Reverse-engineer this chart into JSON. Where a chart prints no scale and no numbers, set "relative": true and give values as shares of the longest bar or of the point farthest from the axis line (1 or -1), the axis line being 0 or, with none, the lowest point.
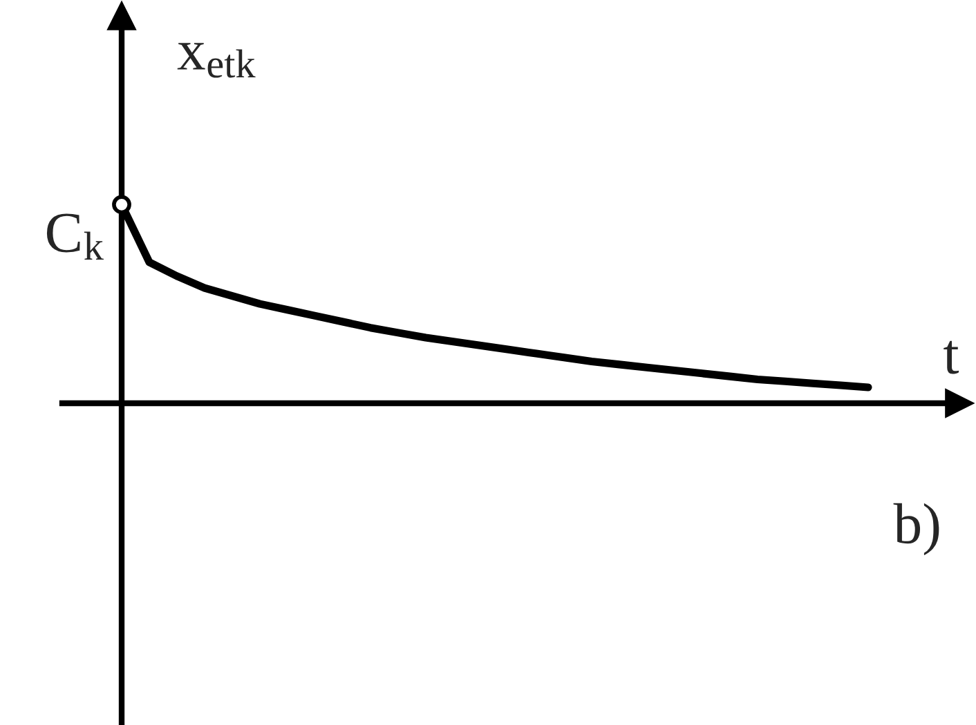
{
  "chart_data": {
    "type": "line",
    "relative": true,
    "xlabel": "t",
    "ylabel": "x$_{etk}$",
    "color": "#000000",
    "marker": "none",
    "line_style": "solid",
    "legend": false,
    "categories": [
      null,
      null,
      null,
      null,
      null,
      null,
      null,
      null,
      null,
      null,
      null,
      null,
      null,
      null,
      null,
      null,
      null,
      null,
      null,
      null,
      null,
      null,
      null,
      null,
      null,
      null,
      null,
      null
    ],
    "values": [
      1.0,
      0.71,
      0.64,
      0.58,
      0.54,
      0.5,
      0.47,
      0.44,
      0.41,
      0.38,
      0.355,
      0.33,
      0.31,
      0.29,
      0.27,
      0.25,
      0.23,
      0.21,
      0.195,
      0.18,
      0.165,
      0.15,
      0.135,
      0.12,
      0.11,
      0.1,
      0.09,
      0.08
    ],
    "annotations": [
      "C$_{k}$",
      "b)"
    ]
  }
}
